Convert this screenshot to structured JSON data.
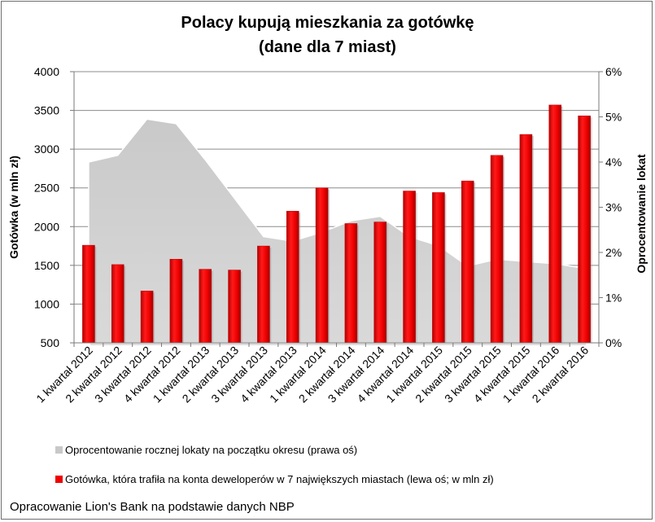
{
  "chart_data": {
    "type": "bar",
    "title": "Polacy kupują mieszkania za gotówkę",
    "subtitle": "(dane dla 7 miast)",
    "ylabel": "Gotówka (w mln zł)",
    "y2label": "Oprocentowanie lokat",
    "ylim": [
      500,
      4000
    ],
    "y2lim": [
      0,
      6
    ],
    "yticks": [
      "500",
      "1000",
      "1500",
      "2000",
      "2500",
      "3000",
      "3500",
      "4000"
    ],
    "y2ticks": [
      "0%",
      "1%",
      "2%",
      "3%",
      "4%",
      "5%",
      "6%"
    ],
    "grid": true,
    "legend_position": "bottom",
    "categories": [
      "1 kwartał 2012",
      "2 kwartał 2012",
      "3 kwartał 2012",
      "4 kwartał 2012",
      "1 kwartał 2013",
      "2 kwartał 2013",
      "3 kwartał 2013",
      "4 kwartał 2013",
      "1 kwartał 2014",
      "2 kwartał 2014",
      "3 kwartał 2014",
      "4 kwartał 2014",
      "1 kwartał 2015",
      "2 kwartał 2015",
      "3 kwartał 2015",
      "4 kwartał 2015",
      "1 kwartał 2016",
      "2 kwartał 2016"
    ],
    "series": [
      {
        "name": "Oprocentowanie rocznej lokaty na początku okresu (prawa oś)",
        "type": "area",
        "axis": "right",
        "color": "#d4d4d4",
        "values": [
          4.0,
          4.15,
          4.95,
          4.85,
          4.05,
          3.2,
          2.35,
          2.25,
          2.45,
          2.7,
          2.8,
          2.35,
          2.15,
          1.7,
          1.85,
          1.8,
          1.75,
          1.65
        ]
      },
      {
        "name": "Gotówka, która trafiła na konta deweloperów w 7 największych miastach (lewa oś; w mln zł)",
        "type": "bar",
        "axis": "left",
        "color": "#ee0000",
        "values": [
          1760,
          1510,
          1170,
          1580,
          1450,
          1440,
          1750,
          2200,
          2500,
          2040,
          2060,
          2460,
          2440,
          2590,
          2920,
          3190,
          3570,
          3430
        ]
      }
    ]
  },
  "source_note": "Opracowanie Lion's Bank na podstawie danych NBP"
}
